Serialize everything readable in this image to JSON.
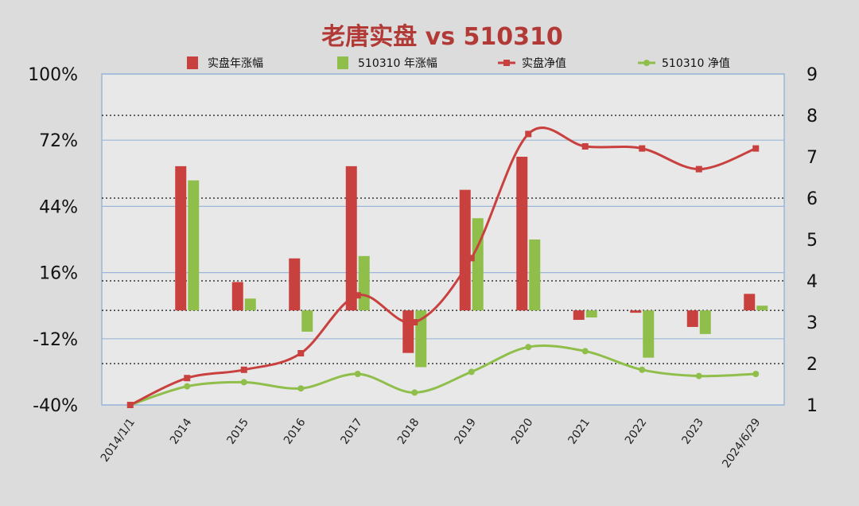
{
  "colors": {
    "accent_red": "#c9413f",
    "accent_green": "#8fbf4a",
    "title": "#b23a36",
    "grid": "#9ab7d8",
    "background": "#dcdcdc"
  },
  "chart_data": {
    "type": "bar+line",
    "title": "老唐实盘 vs 510310",
    "categories": [
      "2014/1/1",
      "2014",
      "2015",
      "2016",
      "2017",
      "2018",
      "2019",
      "2020",
      "2021",
      "2022",
      "2023",
      "2024/6/29"
    ],
    "left_axis": {
      "ylim": [
        -40,
        100
      ],
      "ticks": [
        "100%",
        "72%",
        "44%",
        "16%",
        "-12%",
        "-40%"
      ]
    },
    "right_axis": {
      "ylim": [
        1,
        9
      ],
      "ticks": [
        "9",
        "8",
        "7",
        "6",
        "5",
        "4",
        "3",
        "2",
        "1"
      ]
    },
    "legend": {
      "position": "top",
      "items": [
        {
          "label": "实盘年涨幅",
          "kind": "bar",
          "color": "#c9413f"
        },
        {
          "label": "510310 年涨幅",
          "kind": "bar",
          "color": "#8fbf4a"
        },
        {
          "label": "实盘净值",
          "kind": "line",
          "color": "#c9413f"
        },
        {
          "label": "510310 净值",
          "kind": "line",
          "color": "#8fbf4a"
        }
      ]
    },
    "series": [
      {
        "name": "实盘年涨幅",
        "kind": "bar",
        "axis": "left",
        "color": "#c9413f",
        "values": [
          null,
          61,
          12,
          22,
          61,
          -18,
          51,
          65,
          -4,
          -1,
          -7,
          7
        ]
      },
      {
        "name": "510310 年涨幅",
        "kind": "bar",
        "axis": "left",
        "color": "#8fbf4a",
        "values": [
          null,
          55,
          5,
          -9,
          23,
          -24,
          39,
          30,
          -3,
          -20,
          -10,
          2
        ]
      },
      {
        "name": "实盘净值",
        "kind": "line",
        "axis": "right",
        "color": "#c9413f",
        "values": [
          1.0,
          1.65,
          1.85,
          2.25,
          3.65,
          3.0,
          4.55,
          7.55,
          7.25,
          7.2,
          6.7,
          7.2
        ]
      },
      {
        "name": "510310 净值",
        "kind": "line",
        "axis": "right",
        "color": "#8fbf4a",
        "values": [
          1.0,
          1.45,
          1.55,
          1.4,
          1.75,
          1.3,
          1.8,
          2.4,
          2.3,
          1.85,
          1.7,
          1.75
        ]
      }
    ],
    "grid": true
  }
}
